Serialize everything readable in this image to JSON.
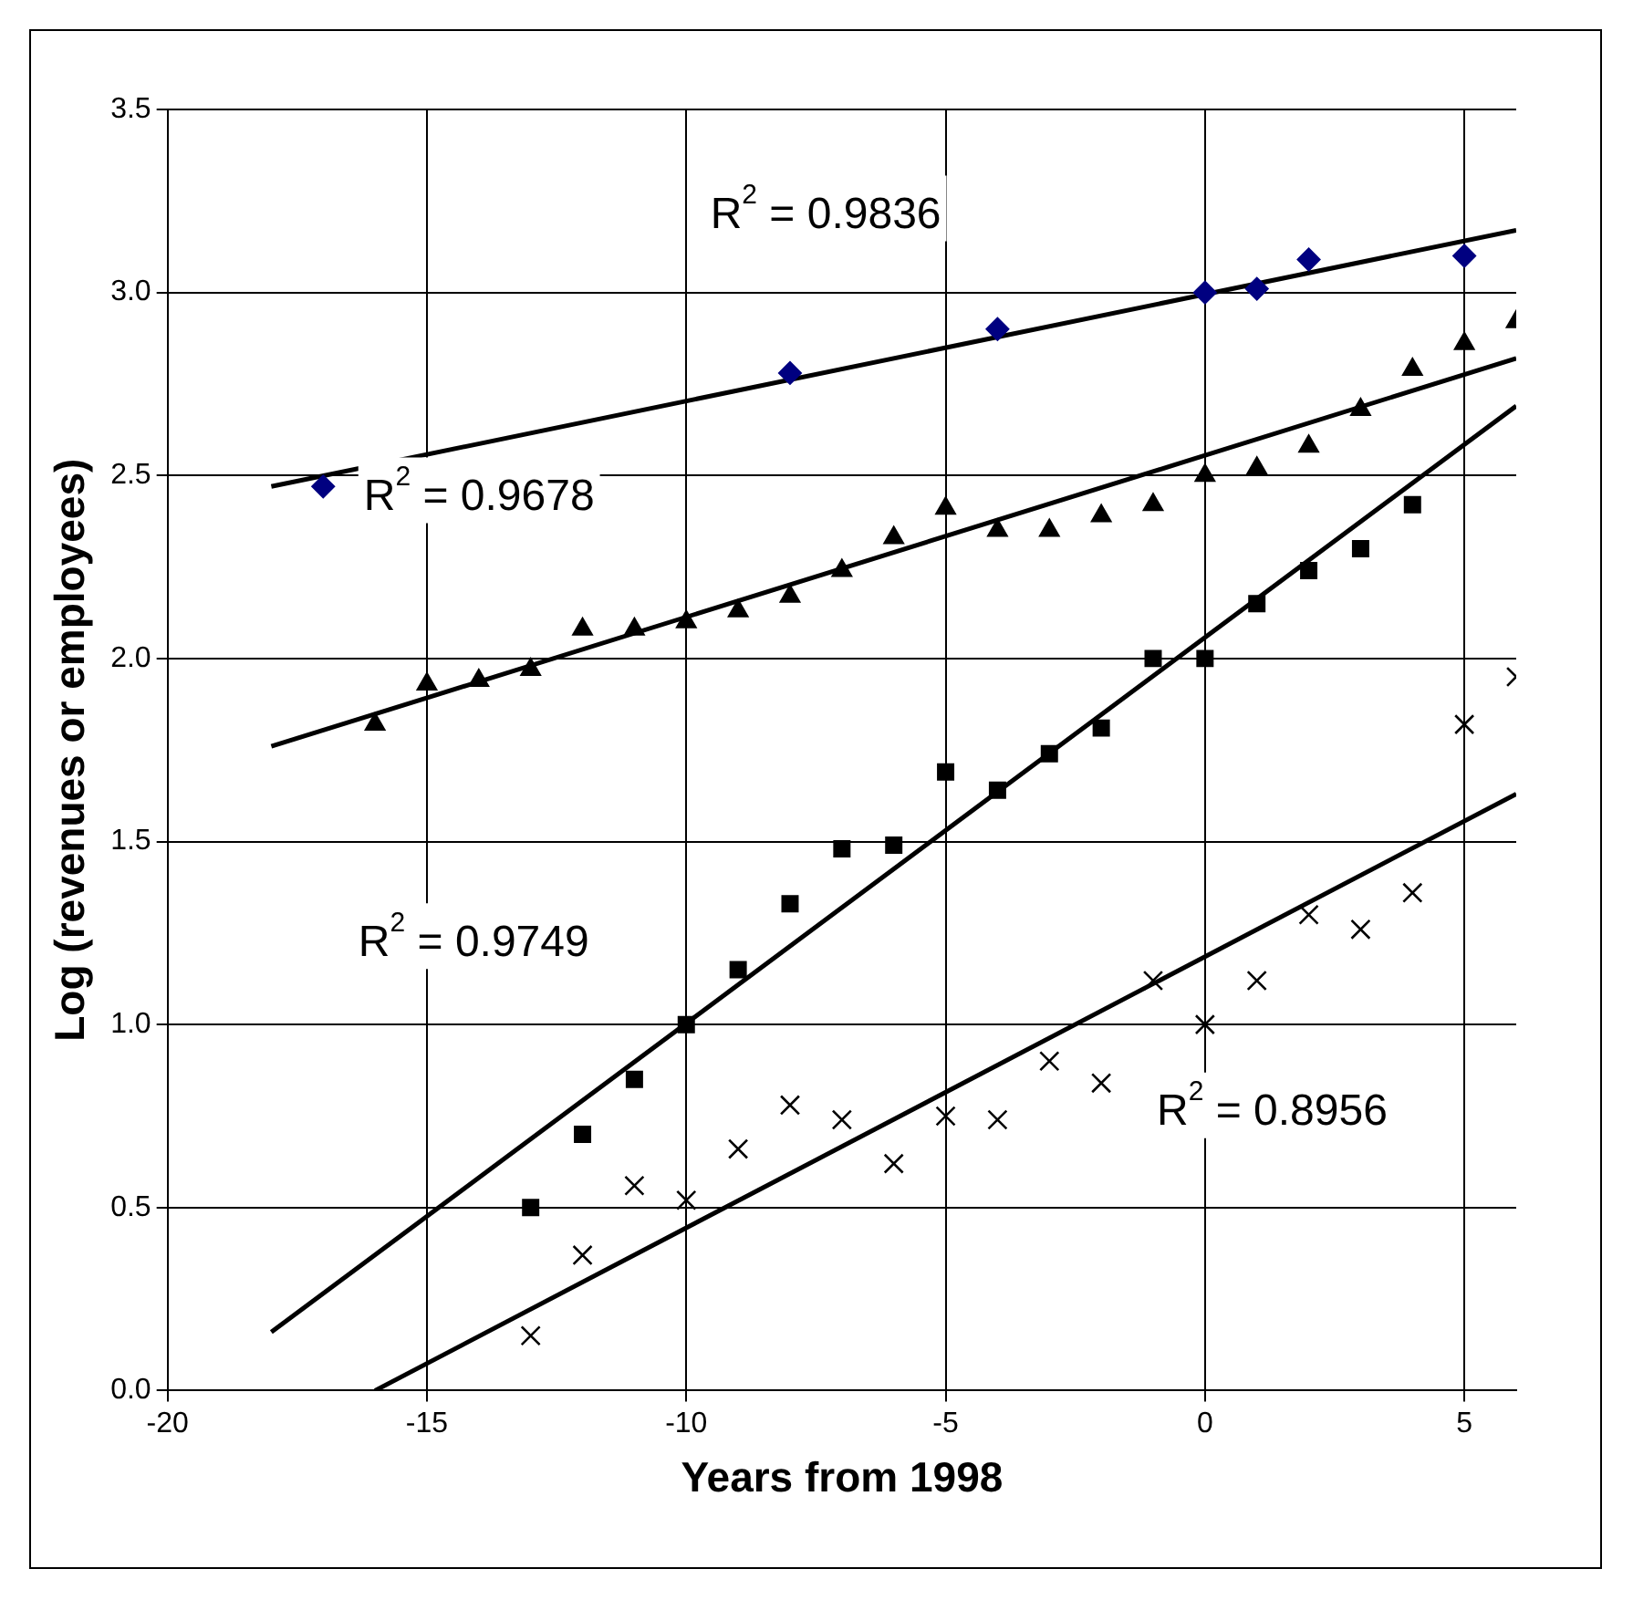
{
  "chart_data": {
    "type": "scatter",
    "xlabel": "Years from 1998",
    "ylabel": "Log (revenues or employees)",
    "xlim": [
      -20,
      6
    ],
    "xticks": [
      -20,
      -15,
      -10,
      -5,
      0,
      5
    ],
    "ylim": [
      0,
      3.5
    ],
    "yticks": [
      {
        "value": 0,
        "label": "0.0"
      },
      {
        "value": 0.5,
        "label": "0.5"
      },
      {
        "value": 1,
        "label": "1.0"
      },
      {
        "value": 1.5,
        "label": "1.5"
      },
      {
        "value": 2,
        "label": "2.0"
      },
      {
        "value": 2.5,
        "label": "2.5"
      },
      {
        "value": 3,
        "label": "3.0"
      },
      {
        "value": 3.5,
        "label": "3.5"
      }
    ],
    "grid": true,
    "legend": false,
    "series": [
      {
        "marker": "diamond",
        "color": "#000080",
        "x": [
          -17,
          -8,
          -4,
          0,
          1,
          2,
          5
        ],
        "values": [
          2.47,
          2.78,
          2.9,
          3.0,
          3.01,
          3.09,
          3.1
        ]
      },
      {
        "marker": "triangle",
        "color": "#000000",
        "x": [
          -16,
          -15,
          -14,
          -13,
          -12,
          -11,
          -10,
          -9,
          -8,
          -7,
          -6,
          -5,
          -4,
          -3,
          -2,
          -1,
          0,
          1,
          2,
          3,
          4,
          5,
          6
        ],
        "values": [
          1.82,
          1.93,
          1.94,
          1.97,
          2.08,
          2.08,
          2.1,
          2.13,
          2.17,
          2.24,
          2.33,
          2.41,
          2.35,
          2.35,
          2.39,
          2.42,
          2.5,
          2.52,
          2.58,
          2.68,
          2.79,
          2.86,
          2.92
        ]
      },
      {
        "marker": "square",
        "color": "#000000",
        "x": [
          -13,
          -12,
          -11,
          -10,
          -9,
          -8,
          -7,
          -6,
          -5,
          -4,
          -3,
          -2,
          -1,
          0,
          1,
          2,
          3,
          4
        ],
        "values": [
          0.5,
          0.7,
          0.85,
          1.0,
          1.15,
          1.33,
          1.48,
          1.49,
          1.69,
          1.64,
          1.74,
          1.81,
          2.0,
          2.0,
          2.15,
          2.24,
          2.3,
          2.42
        ]
      },
      {
        "marker": "cross",
        "color": "#000000",
        "x": [
          -13,
          -12,
          -11,
          -10,
          -9,
          -8,
          -7,
          -6,
          -5,
          -4,
          -3,
          -2,
          -1,
          0,
          1,
          2,
          3,
          4,
          5,
          6
        ],
        "values": [
          0.15,
          0.37,
          0.56,
          0.52,
          0.66,
          0.78,
          0.74,
          0.62,
          0.75,
          0.74,
          0.9,
          0.84,
          1.12,
          1.0,
          1.12,
          1.3,
          1.26,
          1.36,
          1.82,
          1.95
        ]
      },
      {
        "type": "line",
        "marker": "none",
        "line_style": "solid",
        "color": "#000000",
        "x": [
          -18,
          6
        ],
        "values": [
          2.47,
          3.17
        ]
      },
      {
        "type": "line",
        "marker": "none",
        "line_style": "solid",
        "color": "#000000",
        "x": [
          -18,
          6
        ],
        "values": [
          1.76,
          2.82
        ]
      },
      {
        "type": "line",
        "marker": "none",
        "line_style": "solid",
        "color": "#000000",
        "x": [
          -18,
          6
        ],
        "values": [
          0.16,
          2.69
        ]
      },
      {
        "type": "line",
        "marker": "none",
        "line_style": "solid",
        "color": "#000000",
        "x": [
          -16,
          6
        ],
        "values": [
          0,
          1.63
        ]
      }
    ],
    "annotations": [
      "R$^{2}$ = 0.9836",
      "R$^{2}$ = 0.9678",
      "R$^{2}$ = 0.9749",
      "R$^{2}$ = 0.8956"
    ]
  }
}
